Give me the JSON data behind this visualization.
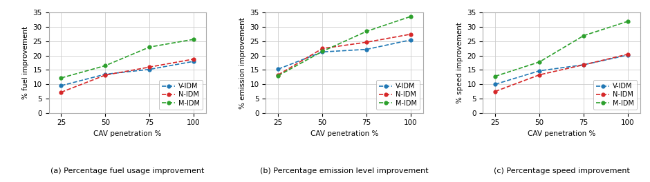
{
  "x": [
    25,
    50,
    75,
    100
  ],
  "fuel": {
    "V-IDM": [
      9.5,
      13.5,
      15.2,
      18.0
    ],
    "N-IDM": [
      7.2,
      13.2,
      16.0,
      18.8
    ],
    "M-IDM": [
      12.2,
      16.5,
      23.0,
      25.7
    ]
  },
  "emission": {
    "V-IDM": [
      15.3,
      21.3,
      22.2,
      25.5
    ],
    "N-IDM": [
      13.3,
      22.5,
      24.7,
      27.5
    ],
    "M-IDM": [
      13.0,
      21.5,
      28.5,
      33.7
    ]
  },
  "speed": {
    "V-IDM": [
      10.0,
      14.7,
      16.8,
      20.2
    ],
    "N-IDM": [
      7.5,
      13.3,
      16.8,
      20.5
    ],
    "M-IDM": [
      12.8,
      17.8,
      27.0,
      32.0
    ]
  },
  "colors": {
    "V-IDM": "#1f77b4",
    "N-IDM": "#d62728",
    "M-IDM": "#2ca02c"
  },
  "ylim": [
    0,
    35
  ],
  "yticks": [
    0,
    5,
    10,
    15,
    20,
    25,
    30,
    35
  ],
  "xticks": [
    25,
    50,
    75,
    100
  ],
  "xlabel": "CAV penetration %",
  "ylabels": [
    "% fuel improvement",
    "% emission improvement",
    "% speed improvement"
  ],
  "captions": [
    "(a) Percentage fuel usage improvement",
    "(b) Percentage emission level improvement",
    "(c) Percentage speed improvement"
  ],
  "legend_order": [
    "V-IDM",
    "N-IDM",
    "M-IDM"
  ]
}
